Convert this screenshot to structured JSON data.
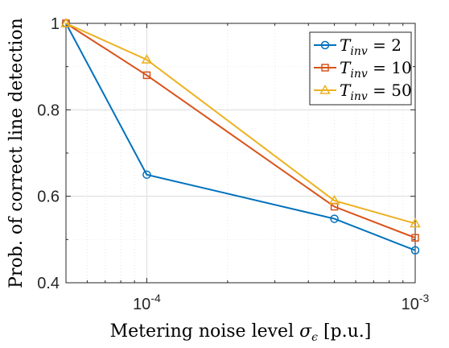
{
  "chart_data": {
    "type": "line",
    "xscale": "log",
    "xlim": [
      5e-05,
      0.001
    ],
    "ylim": [
      0.4,
      1.0
    ],
    "grid": true,
    "legend_placement": "top-right",
    "xlabel_main": "Metering noise level ",
    "xlabel_symbol": "σ",
    "xlabel_sub": "ϵ",
    "xlabel_unit": " [p.u.]",
    "ylabel": "Prob. of correct line detection",
    "yticks": [
      {
        "value": 0.4,
        "label": "0.4"
      },
      {
        "value": 0.6,
        "label": "0.6"
      },
      {
        "value": 0.8,
        "label": "0.8"
      },
      {
        "value": 1.0,
        "label": "1"
      }
    ],
    "xticks": [
      {
        "value": 0.0001,
        "base": "10",
        "exp": "-4"
      },
      {
        "value": 0.001,
        "base": "10",
        "exp": "-3"
      }
    ],
    "x": [
      5e-05,
      0.0001,
      0.0005,
      0.001
    ],
    "series": [
      {
        "name_main": "T",
        "name_sub": "inv",
        "name_rest": " = 2",
        "color": "#0072BD",
        "marker": "circle",
        "values": [
          1.0,
          0.65,
          0.548,
          0.475
        ]
      },
      {
        "name_main": "T",
        "name_sub": "inv",
        "name_rest": " = 10",
        "color": "#D95319",
        "marker": "square",
        "values": [
          1.0,
          0.88,
          0.576,
          0.504
        ]
      },
      {
        "name_main": "T",
        "name_sub": "inv",
        "name_rest": " = 50",
        "color": "#EDB120",
        "marker": "triangle",
        "values": [
          1.0,
          0.916,
          0.59,
          0.537
        ]
      }
    ]
  }
}
